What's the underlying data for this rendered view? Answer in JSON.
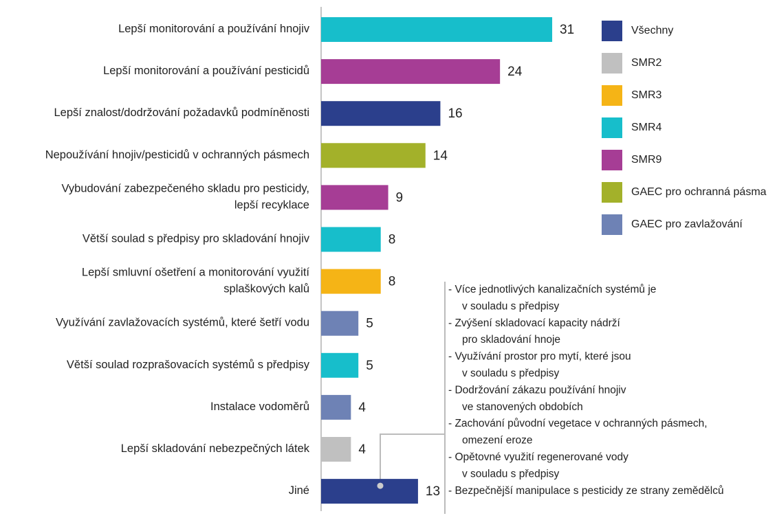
{
  "chart_data": {
    "type": "bar",
    "orientation": "horizontal",
    "categories": [
      "Lepší monitorování a používání hnojiv",
      "Lepší monitorování a používání pesticidů",
      "Lepší znalost/dodržování požadavků podmíněnosti",
      "Nepoužívání hnojiv/pesticidů v ochranných pásmech",
      "Vybudování zabezpečeného skladu pro pesticidy,\nlepší recyklace",
      "Větší soulad s předpisy pro skladování hnojiv",
      "Lepší smluvní ošetření a monitorování využití\nsplaškových kalů",
      "Využívání zavlažovacích systémů, které šetří vodu",
      "Větší soulad rozprašovacích systémů s předpisy",
      "Instalace vodoměrů",
      "Lepší skladování nebezpečných látek",
      "Jiné"
    ],
    "values": [
      31,
      24,
      16,
      14,
      9,
      8,
      8,
      5,
      5,
      4,
      4,
      13
    ],
    "colors": [
      "#17becb",
      "#a63d95",
      "#2b3f8c",
      "#a3b12a",
      "#a63d95",
      "#17becb",
      "#f5b416",
      "#6e82b5",
      "#17becb",
      "#6e82b5",
      "#c0c0c0",
      "#2b3f8c"
    ],
    "legend": [
      {
        "name": "Všechny",
        "color": "#2b3f8c"
      },
      {
        "name": "SMR2",
        "color": "#c0c0c0"
      },
      {
        "name": "SMR3",
        "color": "#f5b416"
      },
      {
        "name": "SMR4",
        "color": "#17becb"
      },
      {
        "name": "SMR9",
        "color": "#a63d95"
      },
      {
        "name": "GAEC pro ochranná pásma",
        "color": "#a3b12a"
      },
      {
        "name": "GAEC pro zavlažování",
        "color": "#6e82b5"
      }
    ],
    "annotation": [
      "- Více jednotlivých kanalizačních systémů je\nv souladu s předpisy",
      "- Zvýšení skladovací kapacity nádrží\npro skladování hnoje",
      "- Využívání prostor pro mytí, které jsou\nv souladu s předpisy",
      "- Dodržování zákazu používání hnojiv\nve stanovených obdobích",
      "- Zachování původní vegetace v ochranných pásmech,\nomezení eroze",
      "- Opětovné využití regenerované vody\nv souladu s předpisy",
      "- Bezpečnější manipulace s pesticidy ze strany zemědělců"
    ]
  }
}
